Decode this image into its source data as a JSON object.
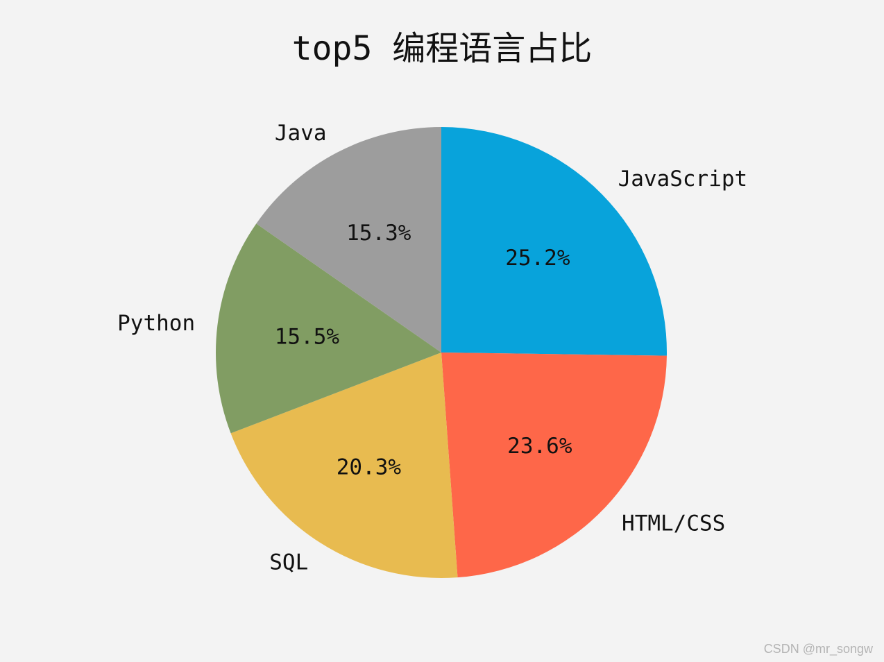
{
  "chart_data": {
    "type": "pie",
    "title": "top5 编程语言占比",
    "labels": [
      "JavaScript",
      "HTML/CSS",
      "SQL",
      "Python",
      "Java"
    ],
    "values": [
      25.2,
      23.6,
      20.3,
      15.5,
      15.3
    ],
    "pct_labels": [
      "25.2%",
      "23.6%",
      "20.3%",
      "15.5%",
      "15.3%"
    ],
    "colors": [
      "#08a3db",
      "#fe6749",
      "#e8bb50",
      "#819d63",
      "#9d9d9d"
    ],
    "start_angle_deg": 90,
    "direction": "clockwise"
  },
  "watermark": "CSDN @mr_songw"
}
